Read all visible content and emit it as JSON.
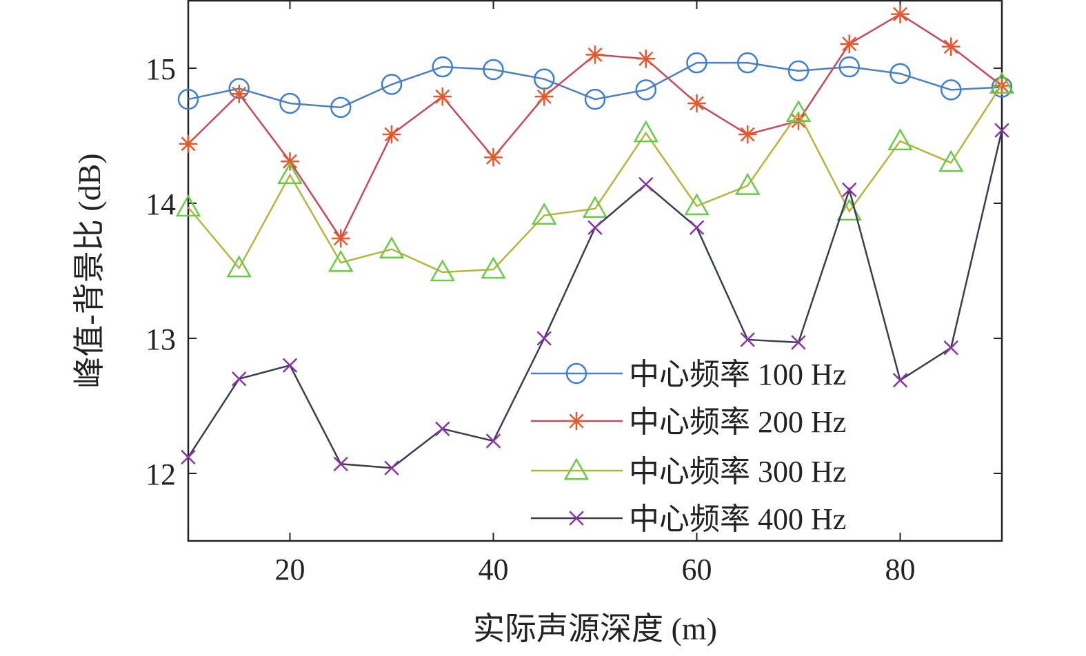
{
  "chart_data": {
    "type": "line",
    "xlabel": "实际声源深度 (m)",
    "ylabel": "峰值-背景比 (dB)",
    "xlim": [
      10,
      90
    ],
    "ylim": [
      11.5,
      15.5
    ],
    "xticks": [
      20,
      40,
      60,
      80
    ],
    "yticks": [
      12,
      13,
      14,
      15
    ],
    "grid": false,
    "legend_position": "bottom-right",
    "x": [
      10,
      15,
      20,
      25,
      30,
      35,
      40,
      45,
      50,
      55,
      60,
      65,
      70,
      75,
      80,
      85,
      90
    ],
    "series": [
      {
        "name": "中心频率 100 Hz",
        "marker": "circle",
        "color": "#4a7fc4",
        "marker_color": "#3c7dd6",
        "values": [
          14.77,
          14.85,
          14.74,
          14.71,
          14.88,
          15.01,
          14.99,
          14.92,
          14.77,
          14.84,
          15.04,
          15.04,
          14.98,
          15.01,
          14.96,
          14.84,
          14.86
        ]
      },
      {
        "name": "中心频率 200 Hz",
        "marker": "star",
        "color": "#c8475a",
        "marker_color": "#e8572a",
        "values": [
          14.44,
          14.81,
          14.31,
          13.74,
          14.51,
          14.79,
          14.34,
          14.79,
          15.1,
          15.07,
          14.74,
          14.51,
          14.61,
          15.18,
          15.4,
          15.16,
          14.87
        ]
      },
      {
        "name": "中心频率 300 Hz",
        "marker": "triangle",
        "color": "#b8b33a",
        "marker_color": "#66cc44",
        "values": [
          13.97,
          13.52,
          14.21,
          13.56,
          13.66,
          13.49,
          13.51,
          13.91,
          13.96,
          14.52,
          13.98,
          14.13,
          14.67,
          13.94,
          14.46,
          14.3,
          14.88
        ]
      },
      {
        "name": "中心频率 400 Hz",
        "marker": "x",
        "color": "#3a3d4e",
        "marker_color": "#8833aa",
        "values": [
          12.12,
          12.7,
          12.8,
          12.07,
          12.04,
          12.33,
          12.24,
          13.0,
          13.82,
          14.14,
          13.82,
          12.99,
          12.97,
          14.1,
          12.69,
          12.93,
          14.54
        ]
      }
    ]
  }
}
